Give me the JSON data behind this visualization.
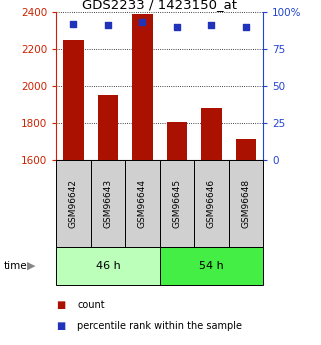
{
  "title": "GDS2233 / 1423150_at",
  "samples": [
    "GSM96642",
    "GSM96643",
    "GSM96644",
    "GSM96645",
    "GSM96646",
    "GSM96648"
  ],
  "counts": [
    2248,
    1955,
    2390,
    1808,
    1885,
    1718
  ],
  "percentiles": [
    92,
    91,
    93,
    90,
    91,
    90
  ],
  "groups": [
    {
      "label": "46 h",
      "indices": [
        0,
        1,
        2
      ],
      "color": "#bbffbb"
    },
    {
      "label": "54 h",
      "indices": [
        3,
        4,
        5
      ],
      "color": "#44ee44"
    }
  ],
  "ylim_left": [
    1600,
    2400
  ],
  "ylim_right": [
    0,
    100
  ],
  "yticks_left": [
    1600,
    1800,
    2000,
    2200,
    2400
  ],
  "yticks_right": [
    0,
    25,
    50,
    75,
    100
  ],
  "bar_color": "#aa1100",
  "dot_color": "#2233bb",
  "bar_width": 0.6,
  "tick_label_area_color": "#d0d0d0",
  "grid_color": "#000000",
  "left_tick_color": "#cc2200",
  "right_tick_color": "#2244cc",
  "legend_labels": [
    "count",
    "percentile rank within the sample"
  ]
}
